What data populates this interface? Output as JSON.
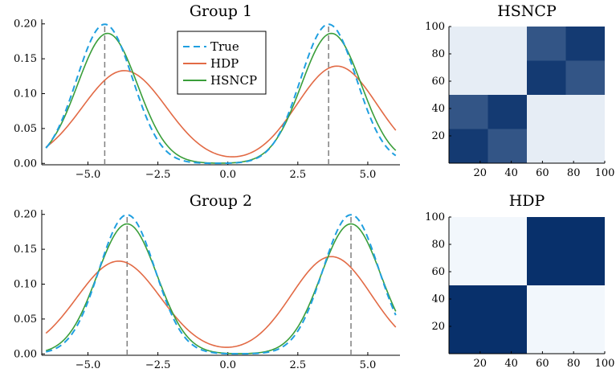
{
  "colors": {
    "true": "#1f9fe0",
    "hdp": "#e26a45",
    "hsncp": "#3a9e3a",
    "vline": "#808080",
    "heat_high": "#08306b",
    "heat_low": "#f7fbff"
  },
  "legend": {
    "entries": [
      "True",
      "HDP",
      "HSNCP"
    ]
  },
  "chart_data": [
    {
      "type": "line",
      "title": "Group 1",
      "xlim": [
        -6.5,
        6
      ],
      "ylim": [
        0,
        0.2
      ],
      "xticks": [
        -5,
        -2.5,
        0,
        2.5,
        5
      ],
      "xtick_labels": [
        "−5.0",
        "−2.5",
        "0.0",
        "2.5",
        "5.0"
      ],
      "yticks": [
        0,
        0.05,
        0.1,
        0.15,
        0.2
      ],
      "ytick_labels": [
        "0.00",
        "0.05",
        "0.10",
        "0.15",
        "0.20"
      ],
      "vlines": [
        -4.4,
        3.6
      ],
      "series": [
        {
          "name": "True",
          "style": "dashed",
          "components": [
            {
              "mu": -4.4,
              "sd": 1.0,
              "w": 0.5
            },
            {
              "mu": 3.6,
              "sd": 1.0,
              "w": 0.5
            }
          ]
        },
        {
          "name": "HDP",
          "style": "solid",
          "components": [
            {
              "mu": -3.7,
              "sd": 1.5,
              "w": 0.5
            },
            {
              "mu": 3.9,
              "sd": 1.43,
              "w": 0.5
            }
          ]
        },
        {
          "name": "HSNCP",
          "style": "solid",
          "components": [
            {
              "mu": -4.3,
              "sd": 1.07,
              "w": 0.5
            },
            {
              "mu": 3.7,
              "sd": 1.07,
              "w": 0.5
            }
          ]
        }
      ]
    },
    {
      "type": "line",
      "title": "Group 2",
      "xlim": [
        -6.5,
        6
      ],
      "ylim": [
        0,
        0.2
      ],
      "xticks": [
        -5,
        -2.5,
        0,
        2.5,
        5
      ],
      "xtick_labels": [
        "−5.0",
        "−2.5",
        "0.0",
        "2.5",
        "5.0"
      ],
      "yticks": [
        0,
        0.05,
        0.1,
        0.15,
        0.2
      ],
      "ytick_labels": [
        "0.00",
        "0.05",
        "0.10",
        "0.15",
        "0.20"
      ],
      "vlines": [
        -3.6,
        4.4
      ],
      "series": [
        {
          "name": "True",
          "style": "dashed",
          "components": [
            {
              "mu": -3.6,
              "sd": 1.0,
              "w": 0.5
            },
            {
              "mu": 4.4,
              "sd": 1.0,
              "w": 0.5
            }
          ]
        },
        {
          "name": "HDP",
          "style": "solid",
          "components": [
            {
              "mu": -3.9,
              "sd": 1.5,
              "w": 0.5
            },
            {
              "mu": 3.7,
              "sd": 1.43,
              "w": 0.5
            }
          ]
        },
        {
          "name": "HSNCP",
          "style": "solid",
          "components": [
            {
              "mu": -3.6,
              "sd": 1.07,
              "w": 0.5
            },
            {
              "mu": 4.4,
              "sd": 1.07,
              "w": 0.5
            }
          ]
        }
      ]
    },
    {
      "type": "heatmap",
      "title": "HSNCP",
      "xlim": [
        0,
        100
      ],
      "ylim": [
        0,
        100
      ],
      "xticks": [
        20,
        40,
        60,
        80,
        100
      ],
      "yticks": [
        20,
        40,
        60,
        80,
        100
      ],
      "blocks": [
        {
          "x": [
            0,
            25
          ],
          "y": [
            0,
            25
          ],
          "value": 0.95
        },
        {
          "x": [
            25,
            50
          ],
          "y": [
            0,
            25
          ],
          "value": 0.82
        },
        {
          "x": [
            0,
            25
          ],
          "y": [
            25,
            50
          ],
          "value": 0.82
        },
        {
          "x": [
            25,
            50
          ],
          "y": [
            25,
            50
          ],
          "value": 0.95
        },
        {
          "x": [
            50,
            75
          ],
          "y": [
            50,
            75
          ],
          "value": 0.95
        },
        {
          "x": [
            75,
            100
          ],
          "y": [
            50,
            75
          ],
          "value": 0.82
        },
        {
          "x": [
            50,
            75
          ],
          "y": [
            75,
            100
          ],
          "value": 0.82
        },
        {
          "x": [
            75,
            100
          ],
          "y": [
            75,
            100
          ],
          "value": 0.95
        },
        {
          "x": [
            50,
            100
          ],
          "y": [
            0,
            50
          ],
          "value": 0.07
        },
        {
          "x": [
            0,
            50
          ],
          "y": [
            50,
            100
          ],
          "value": 0.07
        }
      ]
    },
    {
      "type": "heatmap",
      "title": "HDP",
      "xlim": [
        0,
        100
      ],
      "ylim": [
        0,
        100
      ],
      "xticks": [
        20,
        40,
        60,
        80,
        100
      ],
      "yticks": [
        20,
        40,
        60,
        80,
        100
      ],
      "blocks": [
        {
          "x": [
            0,
            50
          ],
          "y": [
            0,
            50
          ],
          "value": 1.0
        },
        {
          "x": [
            50,
            100
          ],
          "y": [
            50,
            100
          ],
          "value": 1.0
        },
        {
          "x": [
            50,
            100
          ],
          "y": [
            0,
            50
          ],
          "value": 0.02
        },
        {
          "x": [
            0,
            50
          ],
          "y": [
            50,
            100
          ],
          "value": 0.02
        }
      ]
    }
  ]
}
